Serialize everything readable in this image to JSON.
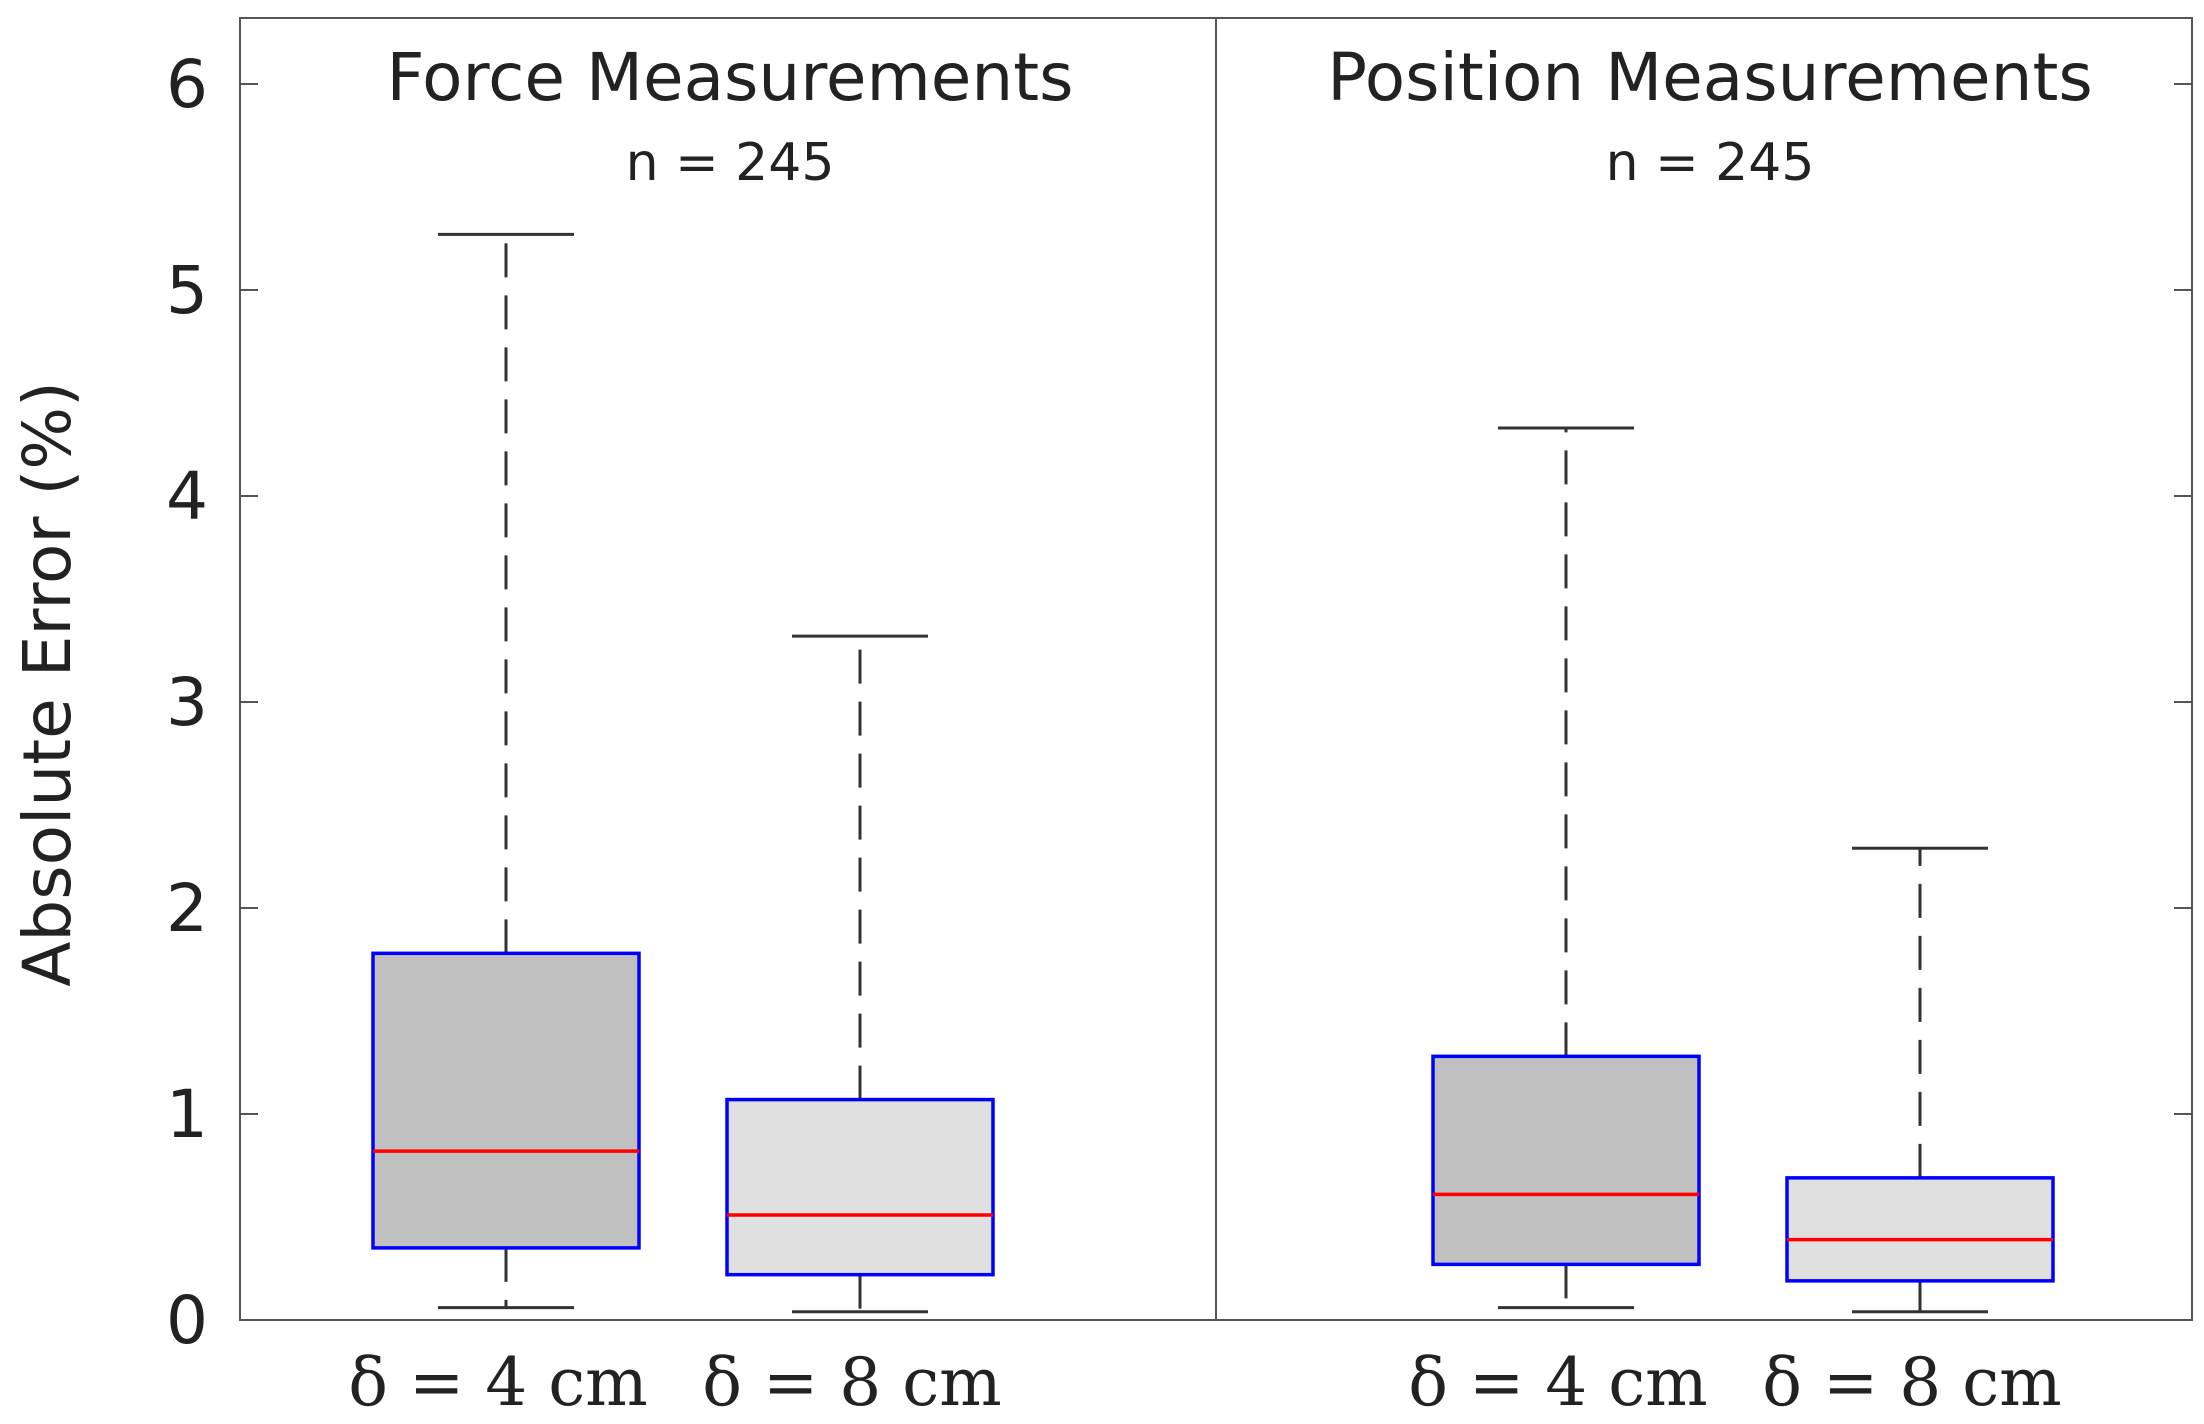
{
  "chart_data": {
    "type": "box",
    "ylabel": "Absolute Error (%)",
    "ylim": [
      0,
      6.3
    ],
    "yticks": [
      "0",
      "1",
      "2",
      "3",
      "4",
      "5",
      "6"
    ],
    "categories": [
      "δ = 4 cm",
      "δ = 8 cm"
    ],
    "panels": [
      {
        "title": "Force Measurements",
        "subtitle": "n = 245",
        "boxes": [
          {
            "category": "δ = 4 cm",
            "whisker_low": 0.06,
            "q1": 0.35,
            "median": 0.82,
            "q3": 1.78,
            "whisker_high": 5.27,
            "fill": "#c0c0c0"
          },
          {
            "category": "δ = 8 cm",
            "whisker_low": 0.04,
            "q1": 0.22,
            "median": 0.51,
            "q3": 1.07,
            "whisker_high": 3.32,
            "fill": "#e0e0e0"
          }
        ]
      },
      {
        "title": "Position Measurements",
        "subtitle": "n = 245",
        "boxes": [
          {
            "category": "δ = 4 cm",
            "whisker_low": 0.06,
            "q1": 0.27,
            "median": 0.61,
            "q3": 1.28,
            "whisker_high": 4.33,
            "fill": "#c0c0c0"
          },
          {
            "category": "δ = 8 cm",
            "whisker_low": 0.04,
            "q1": 0.19,
            "median": 0.39,
            "q3": 0.69,
            "whisker_high": 2.29,
            "fill": "#e0e0e0"
          }
        ]
      }
    ],
    "colors": {
      "box_edge": "#0000ff",
      "median": "#ff0000",
      "whisker": "#333333",
      "axis": "#555555"
    },
    "grid": false
  }
}
